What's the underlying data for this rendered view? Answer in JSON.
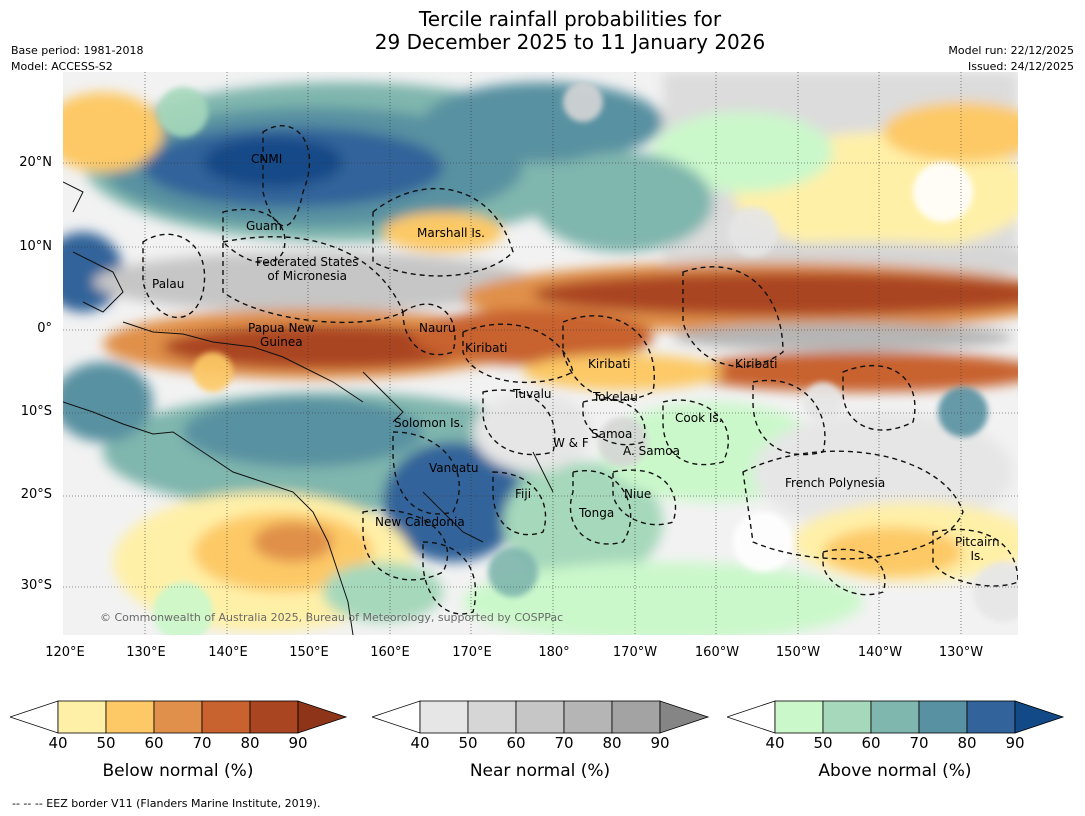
{
  "title": {
    "line1": "Tercile rainfall probabilities for",
    "line2": "29 December 2025 to 11 January 2026"
  },
  "meta": {
    "base_period": "Base period: 1981-2018",
    "model": "Model: ACCESS-S2",
    "model_run": "Model run: 22/12/2025",
    "issued": "Issued: 24/12/2025"
  },
  "axes": {
    "lat_labels": [
      "20°N",
      "10°N",
      "0°",
      "10°S",
      "20°S",
      "30°S"
    ],
    "lon_labels": [
      "120°E",
      "130°E",
      "140°E",
      "150°E",
      "160°E",
      "170°E",
      "180°",
      "170°W",
      "160°W",
      "150°W",
      "140°W",
      "130°W"
    ]
  },
  "regions": [
    "CNMI",
    "Guam",
    "Marshall Is.",
    "Palau",
    "Federated States\nof Micronesia",
    "Papua New\nGuinea",
    "Nauru",
    "Kiribati",
    "Kiribati",
    "Kiribati",
    "Tuvalu",
    "Tokelau",
    "Solomon Is.",
    "Samoa",
    "W & F",
    "A. Samoa",
    "Cook Is.",
    "Vanuatu",
    "Fiji",
    "Niue",
    "Tonga",
    "New Caledonia",
    "French Polynesia",
    "Pitcairn\nIs."
  ],
  "copyright": "© Commonwealth of Australia 2025, Bureau of Meteorology, supported by COSPPac",
  "colorbars": [
    {
      "title": "Below normal (%)",
      "ticks": [
        "40",
        "50",
        "60",
        "70",
        "80",
        "90"
      ],
      "colors": [
        "#ffffff",
        "#fff0a8",
        "#fdc966",
        "#e0904a",
        "#c8622e",
        "#aa4522",
        "#8e3419"
      ]
    },
    {
      "title": "Near normal (%)",
      "ticks": [
        "40",
        "50",
        "60",
        "70",
        "80",
        "90"
      ],
      "colors": [
        "#ffffff",
        "#e6e6e6",
        "#d6d6d6",
        "#c6c6c6",
        "#b5b5b5",
        "#a3a3a3",
        "#858585"
      ]
    },
    {
      "title": "Above normal (%)",
      "ticks": [
        "40",
        "50",
        "60",
        "70",
        "80",
        "90"
      ],
      "colors": [
        "#ffffff",
        "#cbf8cb",
        "#a6d8bb",
        "#7fb6ad",
        "#5891a1",
        "#32639a",
        "#124a87"
      ]
    }
  ],
  "footnote": "--  --  -- EEZ border V11 (Flanders Marine Institute, 2019)."
}
